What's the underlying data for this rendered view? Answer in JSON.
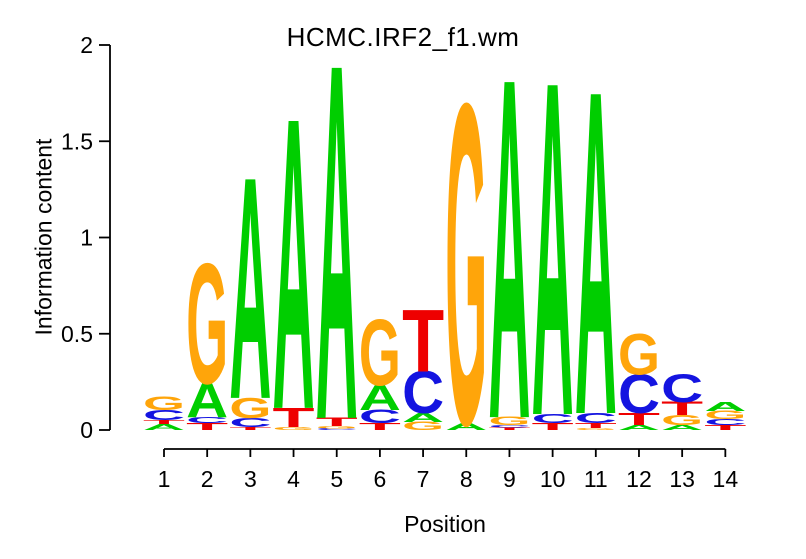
{
  "figure": {
    "background": "#FFFFFF",
    "axis_color": "#000000",
    "text_color": "#000000"
  },
  "chart_data": {
    "type": "bar",
    "subtype": "sequence-logo-stacked-letters",
    "title": "HCMC.IRF2_f1.wm",
    "xlabel": "Position",
    "ylabel": "Information content",
    "ylim": [
      0,
      2
    ],
    "ytick_labels": [
      "0",
      "0.5",
      "1",
      "1.5",
      "2"
    ],
    "ytick_values": [
      0,
      0.5,
      1,
      1.5,
      2
    ],
    "categories": [
      "1",
      "2",
      "3",
      "4",
      "5",
      "6",
      "7",
      "8",
      "9",
      "10",
      "11",
      "12",
      "13",
      "14"
    ],
    "legend": "none",
    "grid": "off",
    "base_colors": {
      "A": "#00CE00",
      "C": "#1414E0",
      "G": "#FFA50A",
      "T": "#EE0000"
    },
    "stack_order_note": "letters listed top-to-bottom; ic = information content (bits)",
    "stacks": [
      {
        "position": 1,
        "letters": [
          {
            "base": "G",
            "ic": 0.068
          },
          {
            "base": "C",
            "ic": 0.052
          },
          {
            "base": "T",
            "ic": 0.021
          },
          {
            "base": "A",
            "ic": 0.031
          }
        ]
      },
      {
        "position": 2,
        "letters": [
          {
            "base": "G",
            "ic": 0.615
          },
          {
            "base": "A",
            "ic": 0.177
          },
          {
            "base": "C",
            "ic": 0.031
          },
          {
            "base": "T",
            "ic": 0.036
          }
        ]
      },
      {
        "position": 3,
        "letters": [
          {
            "base": "A",
            "ic": 1.135
          },
          {
            "base": "G",
            "ic": 0.104
          },
          {
            "base": "C",
            "ic": 0.047
          },
          {
            "base": "T",
            "ic": 0.016
          }
        ]
      },
      {
        "position": 4,
        "letters": [
          {
            "base": "A",
            "ic": 1.49
          },
          {
            "base": "T",
            "ic": 0.099
          },
          {
            "base": "G",
            "ic": 0.016
          }
        ]
      },
      {
        "position": 5,
        "letters": [
          {
            "base": "A",
            "ic": 1.818
          },
          {
            "base": "T",
            "ic": 0.042
          },
          {
            "base": "G",
            "ic": 0.013
          },
          {
            "base": "C",
            "ic": 0.008
          }
        ]
      },
      {
        "position": 6,
        "letters": [
          {
            "base": "G",
            "ic": 0.338
          },
          {
            "base": "A",
            "ic": 0.13
          },
          {
            "base": "C",
            "ic": 0.068
          },
          {
            "base": "T",
            "ic": 0.036
          }
        ]
      },
      {
        "position": 7,
        "letters": [
          {
            "base": "T",
            "ic": 0.318
          },
          {
            "base": "C",
            "ic": 0.214
          },
          {
            "base": "A",
            "ic": 0.047
          },
          {
            "base": "G",
            "ic": 0.042
          }
        ]
      },
      {
        "position": 8,
        "letters": [
          {
            "base": "G",
            "ic": 1.64
          },
          {
            "base": "A",
            "ic": 0.037
          }
        ]
      },
      {
        "position": 9,
        "letters": [
          {
            "base": "A",
            "ic": 1.74
          },
          {
            "base": "G",
            "ic": 0.042
          },
          {
            "base": "C",
            "ic": 0.013
          },
          {
            "base": "T",
            "ic": 0.012
          }
        ]
      },
      {
        "position": 10,
        "letters": [
          {
            "base": "A",
            "ic": 1.708
          },
          {
            "base": "C",
            "ic": 0.047
          },
          {
            "base": "T",
            "ic": 0.036
          }
        ]
      },
      {
        "position": 11,
        "letters": [
          {
            "base": "A",
            "ic": 1.656
          },
          {
            "base": "C",
            "ic": 0.052
          },
          {
            "base": "T",
            "ic": 0.026
          },
          {
            "base": "G",
            "ic": 0.01
          }
        ]
      },
      {
        "position": 12,
        "letters": [
          {
            "base": "G",
            "ic": 0.21
          },
          {
            "base": "C",
            "ic": 0.2
          },
          {
            "base": "T",
            "ic": 0.063
          },
          {
            "base": "A",
            "ic": 0.026
          }
        ]
      },
      {
        "position": 13,
        "letters": [
          {
            "base": "C",
            "ic": 0.141
          },
          {
            "base": "T",
            "ic": 0.068
          },
          {
            "base": "G",
            "ic": 0.052
          },
          {
            "base": "A",
            "ic": 0.026
          }
        ]
      },
      {
        "position": 14,
        "letters": [
          {
            "base": "A",
            "ic": 0.047
          },
          {
            "base": "G",
            "ic": 0.042
          },
          {
            "base": "C",
            "ic": 0.031
          },
          {
            "base": "T",
            "ic": 0.026
          }
        ]
      }
    ]
  }
}
